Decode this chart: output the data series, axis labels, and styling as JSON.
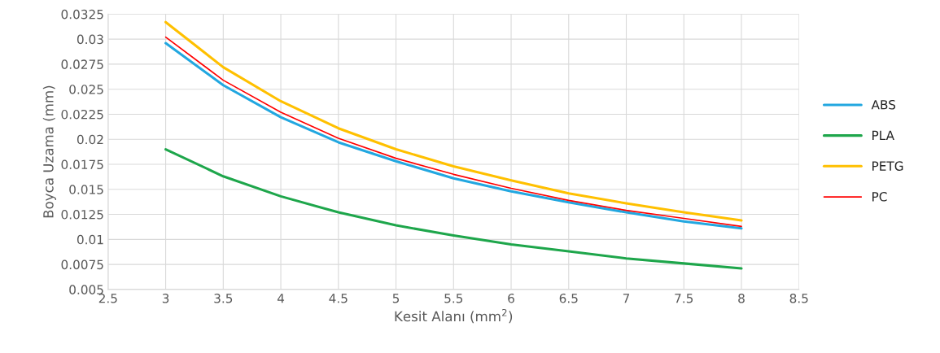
{
  "chart_data": {
    "type": "line",
    "xlabel": "Kesit Alanı (mm$^{2}$)",
    "ylabel": "Boyca Uzama (mm)",
    "x": [
      3,
      3.5,
      4,
      4.5,
      5,
      5.5,
      6,
      6.5,
      7,
      7.5,
      8
    ],
    "series": [
      {
        "name": "ABS",
        "color": "#22a7e0",
        "values": [
          0.0296,
          0.0254,
          0.0222,
          0.0197,
          0.0178,
          0.0161,
          0.0148,
          0.0137,
          0.0127,
          0.0118,
          0.0111
        ]
      },
      {
        "name": "PLA",
        "color": "#1ea64b",
        "values": [
          0.019,
          0.0163,
          0.0143,
          0.0127,
          0.0114,
          0.0104,
          0.0095,
          0.0088,
          0.0081,
          0.0076,
          0.0071
        ]
      },
      {
        "name": "PETG",
        "color": "#ffc000",
        "values": [
          0.0317,
          0.0272,
          0.0238,
          0.0211,
          0.019,
          0.0173,
          0.0159,
          0.0146,
          0.0136,
          0.0127,
          0.0119
        ]
      },
      {
        "name": "PC",
        "color": "#ff0000",
        "values": [
          0.0302,
          0.0259,
          0.0227,
          0.0201,
          0.0181,
          0.0165,
          0.0151,
          0.0139,
          0.0129,
          0.0121,
          0.0113
        ]
      }
    ],
    "xlim": [
      2.5,
      8.5
    ],
    "xticks": [
      2.5,
      3,
      3.5,
      4,
      4.5,
      5,
      5.5,
      6,
      6.5,
      7,
      7.5,
      8,
      8.5
    ],
    "ylim": [
      0.005,
      0.0325
    ],
    "yticks": [
      0.005,
      0.0075,
      0.01,
      0.0125,
      0.015,
      0.0175,
      0.02,
      0.0225,
      0.025,
      0.0275,
      0.03,
      0.0325
    ],
    "grid": true,
    "legend": "right",
    "line_style": "solid",
    "marker": "none"
  }
}
